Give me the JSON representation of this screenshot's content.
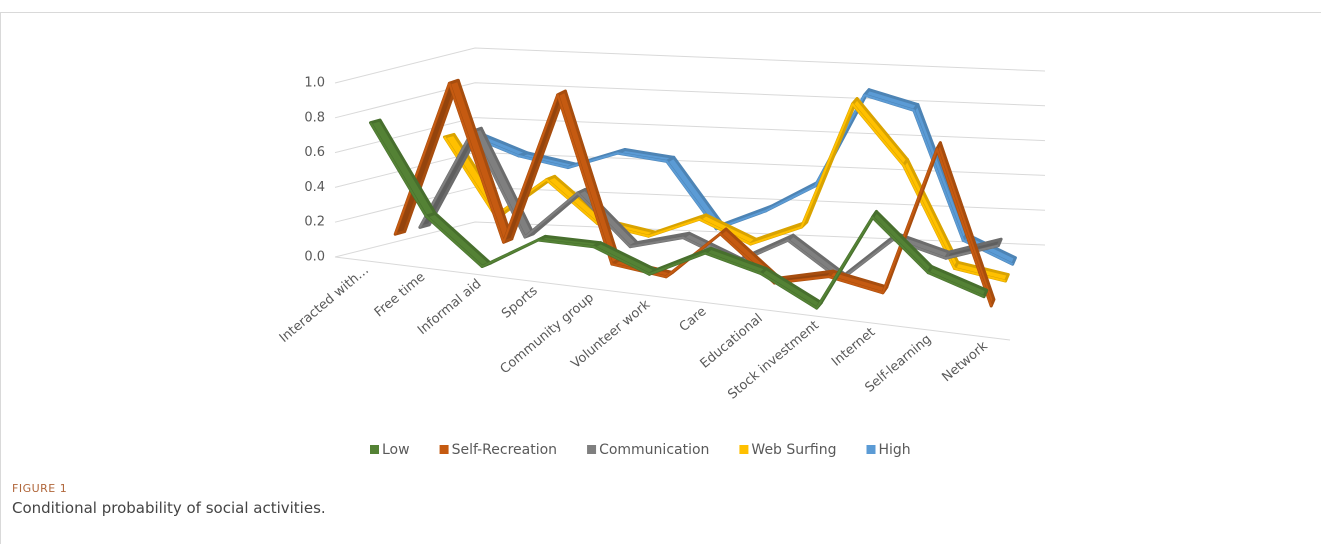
{
  "chart_data": {
    "type": "line3d",
    "categories": [
      "Interacted with…",
      "Free time",
      "Informal aid",
      "Sports",
      "Community group",
      "Volunteer work",
      "Care",
      "Educational",
      "Stock investment",
      "Internet",
      "Self-learning",
      "Network"
    ],
    "series": [
      {
        "name": "Low",
        "color": "#548235",
        "values": [
          0.78,
          0.28,
          0.03,
          0.22,
          0.22,
          0.1,
          0.26,
          0.18,
          0.02,
          0.58,
          0.3,
          0.2
        ]
      },
      {
        "name": "Self-Recreation",
        "color": "#c55a11",
        "values": [
          0.1,
          1.0,
          0.12,
          1.0,
          0.06,
          0.02,
          0.3,
          0.05,
          0.12,
          0.06,
          0.92,
          0.05
        ]
      },
      {
        "name": "Communication",
        "color": "#7f7f7f",
        "values": [
          0.1,
          0.68,
          0.1,
          0.38,
          0.1,
          0.18,
          0.06,
          0.22,
          0.02,
          0.28,
          0.2,
          0.3
        ]
      },
      {
        "name": "Web Surfing",
        "color": "#ffc000",
        "values": [
          0.58,
          0.15,
          0.38,
          0.15,
          0.1,
          0.22,
          0.1,
          0.22,
          0.95,
          0.62,
          0.05,
          0.0
        ]
      },
      {
        "name": "High",
        "color": "#5b9bd5",
        "values": [
          0.55,
          0.45,
          0.4,
          0.5,
          0.47,
          0.1,
          0.22,
          0.38,
          0.92,
          0.85,
          0.12,
          0.0
        ]
      }
    ],
    "ylim": [
      0,
      1.0
    ],
    "yticks": [
      {
        "value": 0,
        "label": "0.0"
      },
      0.2,
      0.4,
      0.6,
      0.8,
      {
        "value": 1.0,
        "label": "1.0"
      }
    ],
    "grid": true
  },
  "caption": {
    "label": "FIGURE 1",
    "text": "Conditional probability of social activities."
  }
}
